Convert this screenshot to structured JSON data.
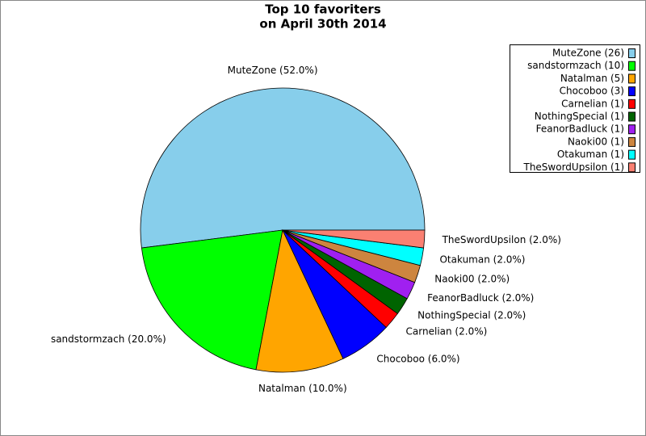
{
  "chart_data": {
    "type": "pie",
    "title": "Top 10 favoriters",
    "subtitle": "on April 30th 2014",
    "values": [
      26,
      10,
      5,
      3,
      1,
      1,
      1,
      1,
      1,
      1
    ],
    "value_labels": [
      "MuteZone (52.0%)",
      "sandstormzach (20.0%)",
      "Natalman (10.0%)",
      "Chocoboo (6.0%)",
      "Carnelian (2.0%)",
      "NothingSpecial (2.0%)",
      "FeanorBadluck (2.0%)",
      "Naoki00 (2.0%)",
      "Otakuman (2.0%)",
      "TheSwordUpsilon (2.0%)"
    ],
    "legend_labels": [
      "MuteZone (26)",
      "sandstormzach (10)",
      "Natalman (5)",
      "Chocoboo (3)",
      "Carnelian (1)",
      "NothingSpecial (1)",
      "FeanorBadluck (1)",
      "Naoki00 (1)",
      "Otakuman (1)",
      "TheSwordUpsilon (1)"
    ],
    "colors": [
      "#87ceeb",
      "#00ff00",
      "#ffa500",
      "#0000ff",
      "#ff0000",
      "#006400",
      "#a020f0",
      "#cd853f",
      "#00ffff",
      "#fa8072"
    ],
    "legend": "upper right"
  }
}
